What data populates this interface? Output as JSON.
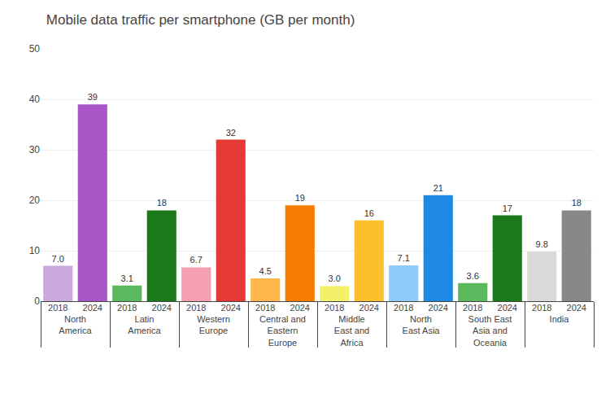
{
  "chart_data": {
    "type": "bar",
    "title": "Mobile data traffic per smartphone (GB per month)",
    "categories": [
      "North\nAmerica",
      "Latin\nAmerica",
      "Western\nEurope",
      "Central and\nEastern\nEurope",
      "Middle\nEast and\nAfrica",
      "North\nEast Asia",
      "South East\nAsia and\nOceania",
      "India"
    ],
    "series": [
      {
        "name": "2018",
        "values": [
          7.0,
          3.1,
          6.7,
          4.5,
          3.0,
          7.1,
          3.6,
          9.8
        ],
        "value_labels": [
          "7.0",
          "3.1",
          "6.7",
          "4.5",
          "3.0",
          "7.1",
          "3.6",
          "9.8"
        ],
        "colors": [
          "#c9a8dc",
          "#5cb85c",
          "#f4a0b0",
          "#ffb74d",
          "#f5f06a",
          "#90caf9",
          "#5cb85c",
          "#d9d9d9"
        ]
      },
      {
        "name": "2024",
        "values": [
          39,
          18,
          32,
          19,
          16,
          21,
          17,
          18
        ],
        "value_labels": [
          "39",
          "18",
          "32",
          "19",
          "16",
          "21",
          "17",
          "18"
        ],
        "colors": [
          "#a855c8",
          "#1a7a1a",
          "#e53935",
          "#f57c00",
          "#fbc02d",
          "#1e88e5",
          "#1a7a1a",
          "#888888"
        ]
      }
    ],
    "ylim": [
      0,
      50
    ],
    "yticks": [
      0,
      10,
      20,
      30,
      40,
      50
    ],
    "grid": true,
    "data_labels": true
  }
}
